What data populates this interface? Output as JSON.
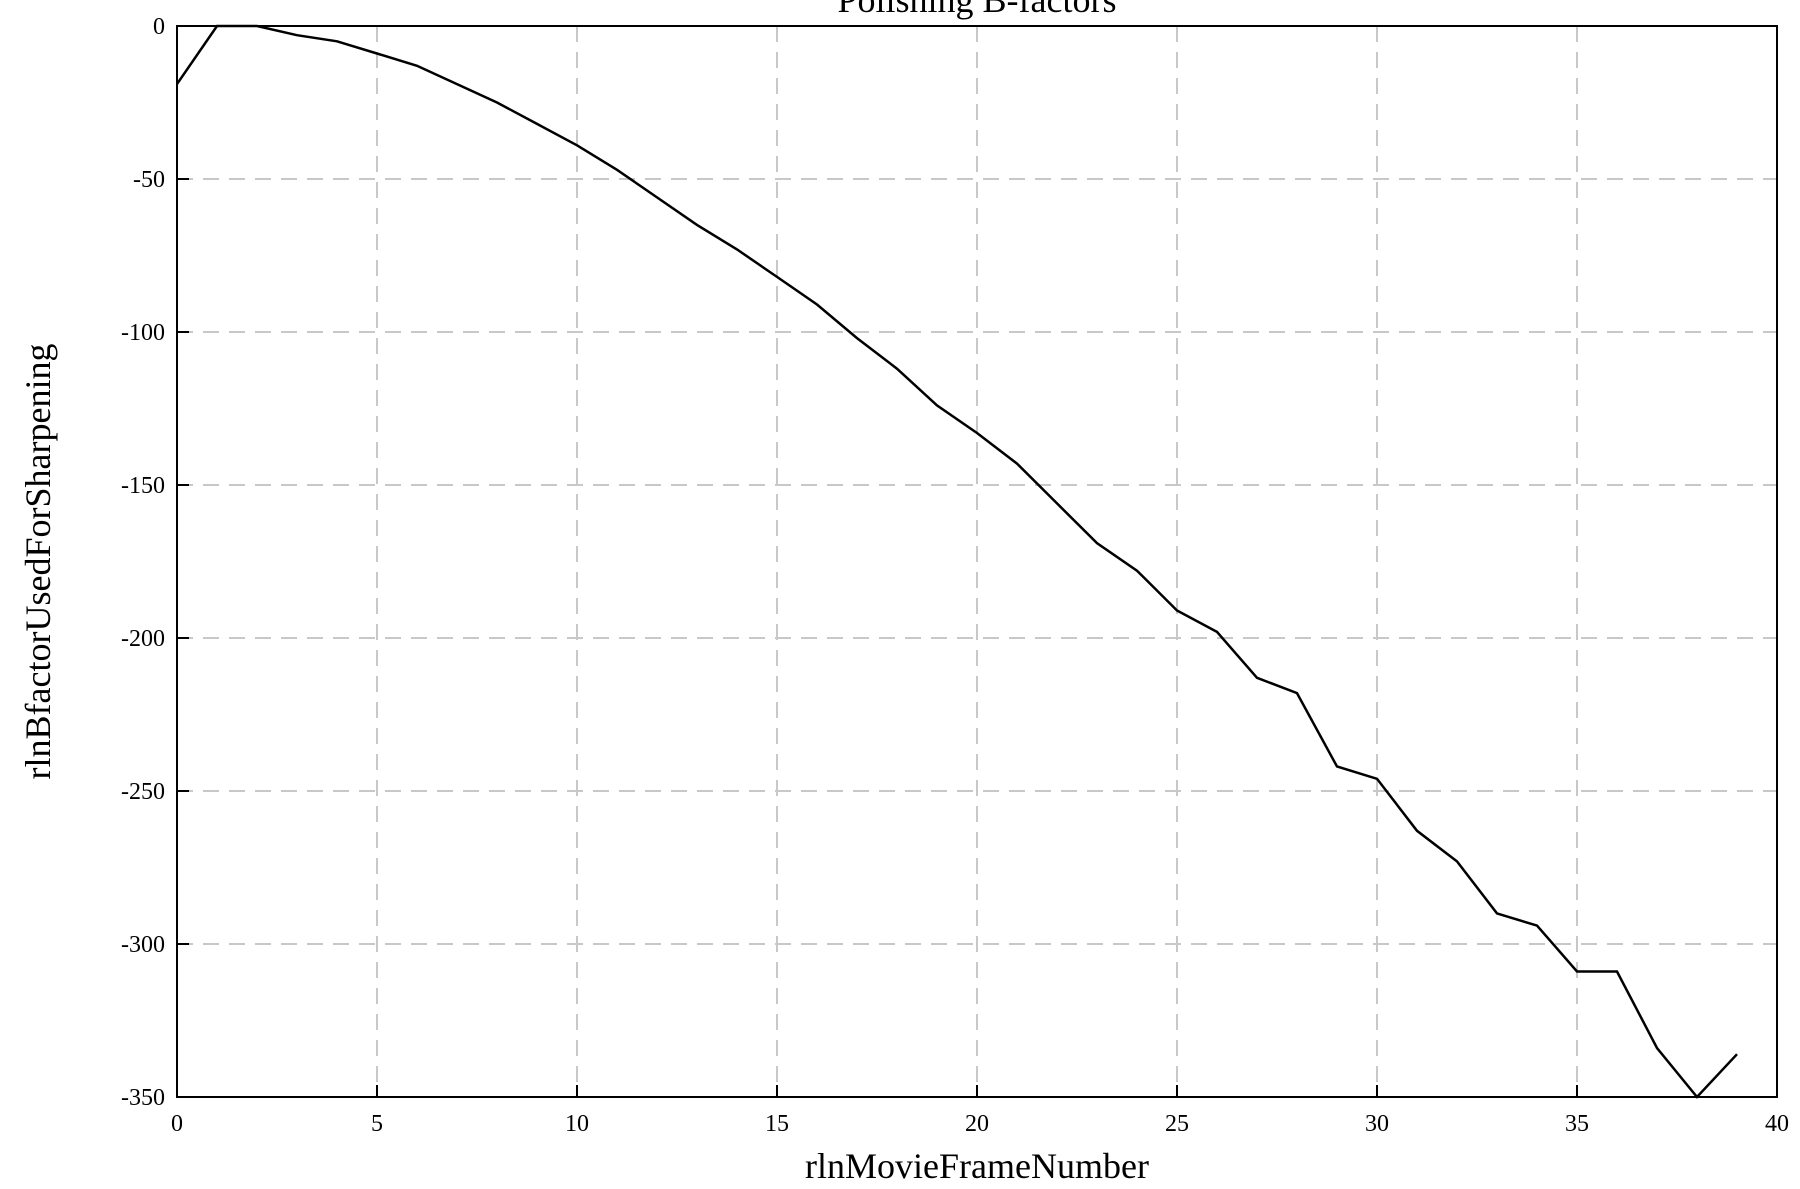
{
  "chart_data": {
    "type": "line",
    "title": "Polishing B-factors",
    "xlabel": "rlnMovieFrameNumber",
    "ylabel": "rlnBfactorUsedForSharpening",
    "xlim": [
      0,
      40
    ],
    "ylim": [
      -350,
      0
    ],
    "xticks": [
      0,
      5,
      10,
      15,
      20,
      25,
      30,
      35,
      40
    ],
    "yticks": [
      0,
      -50,
      -100,
      -150,
      -200,
      -250,
      -300,
      -350
    ],
    "grid": true,
    "legend": "none",
    "series": [
      {
        "color": "#000000",
        "x": [
          0,
          1,
          2,
          3,
          4,
          5,
          6,
          7,
          8,
          9,
          10,
          11,
          12,
          13,
          14,
          15,
          16,
          17,
          18,
          19,
          20,
          21,
          22,
          23,
          24,
          25,
          26,
          27,
          28,
          29,
          30,
          31,
          32,
          33,
          34,
          35,
          36,
          37,
          38,
          39
        ],
        "y": [
          -19,
          0,
          0,
          -3,
          -5,
          -9,
          -13,
          -19,
          -25,
          -32,
          -39,
          -47,
          -56,
          -65,
          -73,
          -82,
          -91,
          -102,
          -112,
          -124,
          -133,
          -143,
          -156,
          -169,
          -178,
          -191,
          -198,
          -213,
          -218,
          -242,
          -246,
          -263,
          -273,
          -290,
          -294,
          -309,
          -309,
          -334,
          -350,
          -336
        ]
      }
    ]
  }
}
